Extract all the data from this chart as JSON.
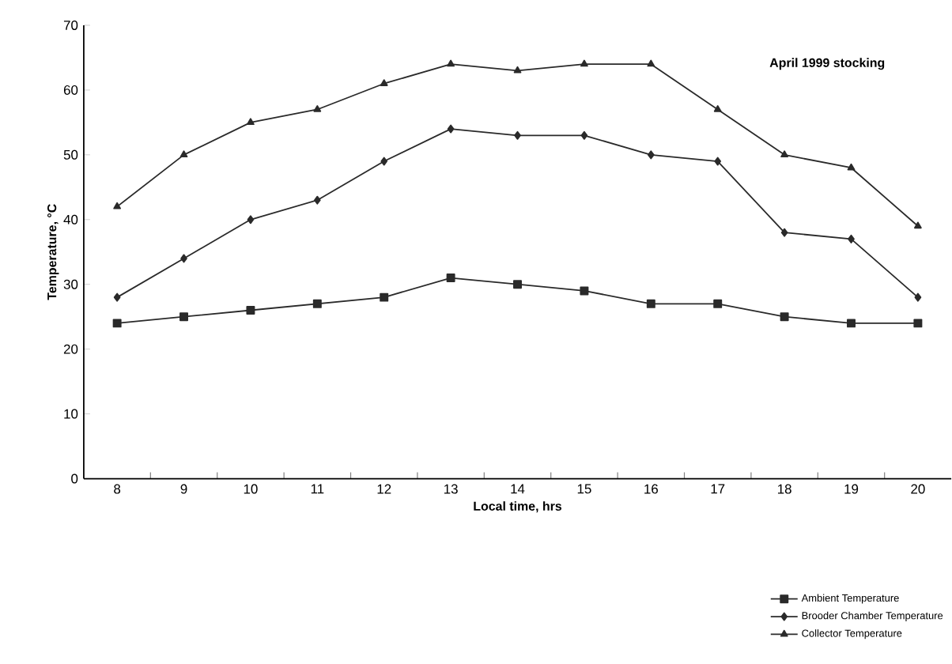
{
  "chart_data": {
    "type": "line",
    "xlabel": "Local time, hrs",
    "ylabel": "Temperature, °C",
    "annotations": [
      "April 1999 stocking"
    ],
    "categories": [
      "8",
      "9",
      "10",
      "11",
      "12",
      "13",
      "14",
      "15",
      "16",
      "17",
      "18",
      "19",
      "20"
    ],
    "ylim": [
      0,
      70
    ],
    "yticks": [
      0,
      10,
      20,
      30,
      40,
      50,
      60,
      70
    ],
    "legend": "bottom right",
    "line_style": "solid",
    "series": [
      {
        "name": "Ambient Temperature",
        "color": "#2a2a2a",
        "marker": "square",
        "values": [
          24,
          25,
          26,
          27,
          28,
          31,
          30,
          29,
          27,
          27,
          25,
          24,
          24
        ]
      },
      {
        "name": "Brooder Chamber Temperature",
        "color": "#2a2a2a",
        "marker": "diamond",
        "values": [
          28,
          34,
          40,
          43,
          49,
          54,
          53,
          53,
          50,
          49,
          38,
          37,
          28
        ]
      },
      {
        "name": "Collector Temperature",
        "color": "#2a2a2a",
        "marker": "triangle",
        "values": [
          42,
          50,
          55,
          57,
          61,
          64,
          63,
          64,
          64,
          57,
          50,
          48,
          39
        ]
      }
    ]
  }
}
